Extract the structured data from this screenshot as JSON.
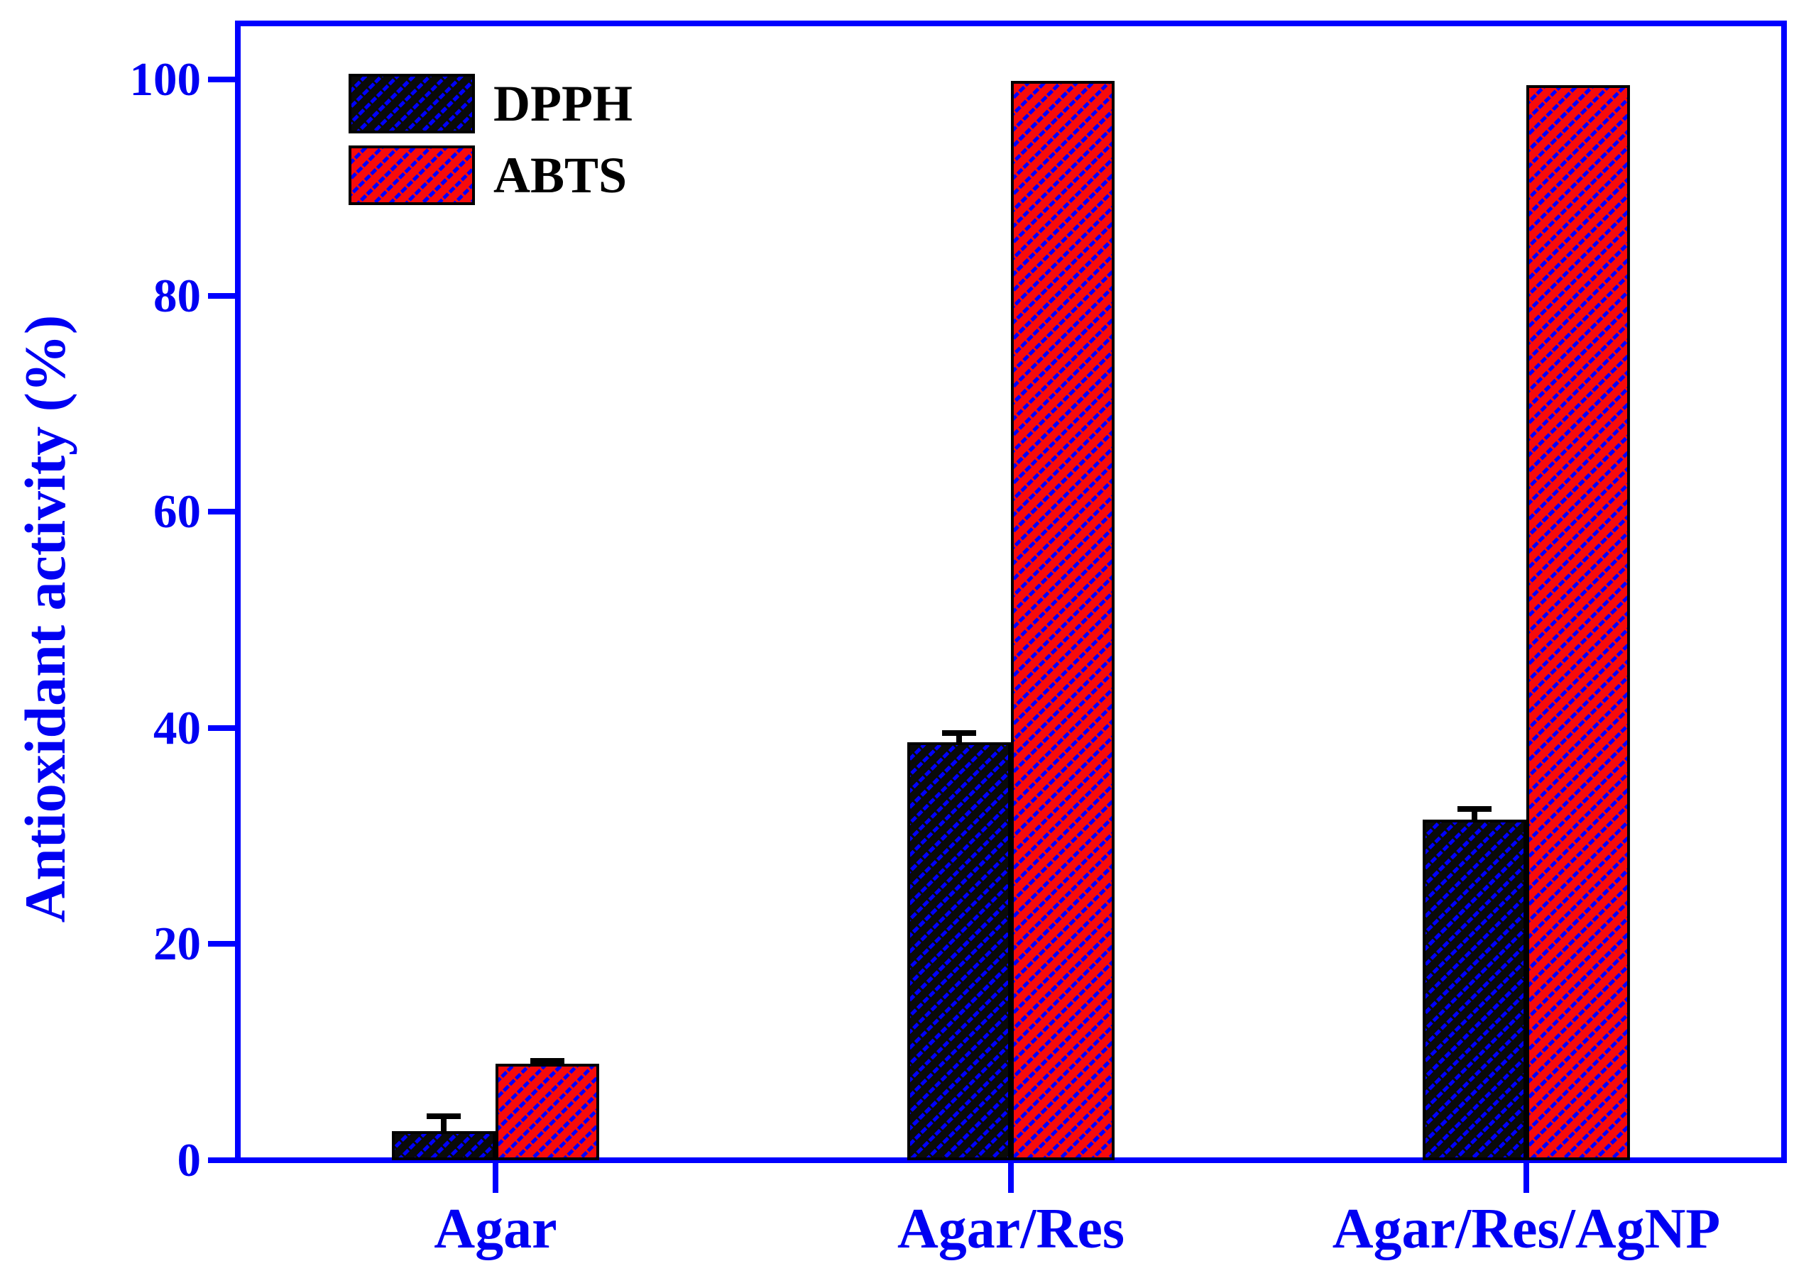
{
  "chart_data": {
    "type": "bar",
    "title": "",
    "ylabel": "Antioxidant activity (%)",
    "xlabel": "",
    "categories": [
      "Agar",
      "Agar/Res",
      "Agar/Res/AgNP"
    ],
    "series": [
      {
        "name": "DPPH",
        "face_color": "#0a0a0a",
        "values": [
          2.7,
          38.7,
          31.5
        ],
        "errors": [
          1.4,
          0.8,
          1.0
        ]
      },
      {
        "name": "ABTS",
        "face_color": "#f70b0b",
        "values": [
          8.9,
          99.9,
          99.5
        ],
        "errors": [
          0.3,
          0,
          0
        ]
      }
    ],
    "ylim": [
      0,
      105
    ],
    "yticks": [
      0,
      20,
      40,
      60,
      80,
      100
    ],
    "grid": false,
    "legend_position": "top-left",
    "legend_entries": [
      "DPPH",
      "ABTS"
    ],
    "hatch_style": "blue dashed diagonal lines on filled bars",
    "error_bars": "upper caps, black",
    "colors": {
      "axis_frame": "#0000ff",
      "tick_marks": "#0000ff",
      "axis_text": "#0000f2",
      "hatch": "#0000ff",
      "error_bar": "#000000",
      "legend_text": "#000000",
      "dpph_fill": "#0a0a0a",
      "abts_fill": "#f70b0b",
      "background": "#ffffff"
    }
  }
}
